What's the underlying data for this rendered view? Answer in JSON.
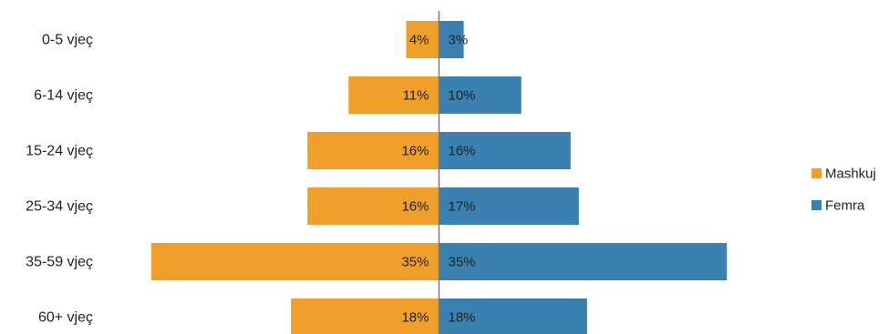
{
  "chart_data": {
    "type": "bar",
    "orientation": "horizontal-diverging",
    "categories": [
      "0-5 vjeç",
      "6-14 vjeç",
      "15-24 vjeç",
      "25-34 vjeç",
      "35-59 vjeç",
      "60+ vjeç"
    ],
    "series": [
      {
        "name": "Mashkuj",
        "values": [
          4,
          11,
          16,
          16,
          35,
          18
        ],
        "labels": [
          "4%",
          "11%",
          "16%",
          "16%",
          "35%",
          "18%"
        ],
        "color": "#F0A02A",
        "side": "left"
      },
      {
        "name": "Femra",
        "values": [
          3,
          10,
          16,
          17,
          35,
          18
        ],
        "labels": [
          "3%",
          "10%",
          "16%",
          "17%",
          "35%",
          "18%"
        ],
        "color": "#3A80B0",
        "side": "right"
      }
    ],
    "unit": "%",
    "legend_position": "right",
    "grid": false
  }
}
